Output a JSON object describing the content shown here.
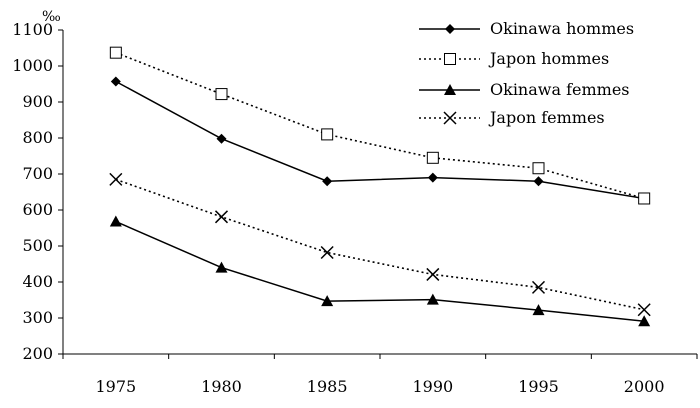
{
  "chart_data": {
    "type": "line",
    "ylabel": "‰",
    "xlabel": "",
    "title": "",
    "ylim": [
      200,
      1100
    ],
    "yticks": [
      200,
      300,
      400,
      500,
      600,
      700,
      800,
      900,
      1000,
      1100
    ],
    "categories": [
      "1975",
      "1980",
      "1985",
      "1990",
      "1995",
      "2000"
    ],
    "legend_position": "top-right",
    "grid": false,
    "series": [
      {
        "name": "Okinawa hommes",
        "values": [
          957,
          798,
          680,
          690,
          680,
          632
        ],
        "marker": "diamond",
        "line": "solid",
        "color": "#000000"
      },
      {
        "name": "Japon hommes",
        "values": [
          1037,
          922,
          810,
          745,
          716,
          632
        ],
        "marker": "square-open",
        "line": "dotted",
        "color": "#000000"
      },
      {
        "name": "Okinawa femmes",
        "values": [
          568,
          440,
          347,
          351,
          322,
          291
        ],
        "marker": "triangle",
        "line": "solid",
        "color": "#000000"
      },
      {
        "name": "Japon femmes",
        "values": [
          685,
          581,
          482,
          421,
          385,
          323
        ],
        "marker": "x",
        "line": "dotted",
        "color": "#000000"
      }
    ]
  }
}
